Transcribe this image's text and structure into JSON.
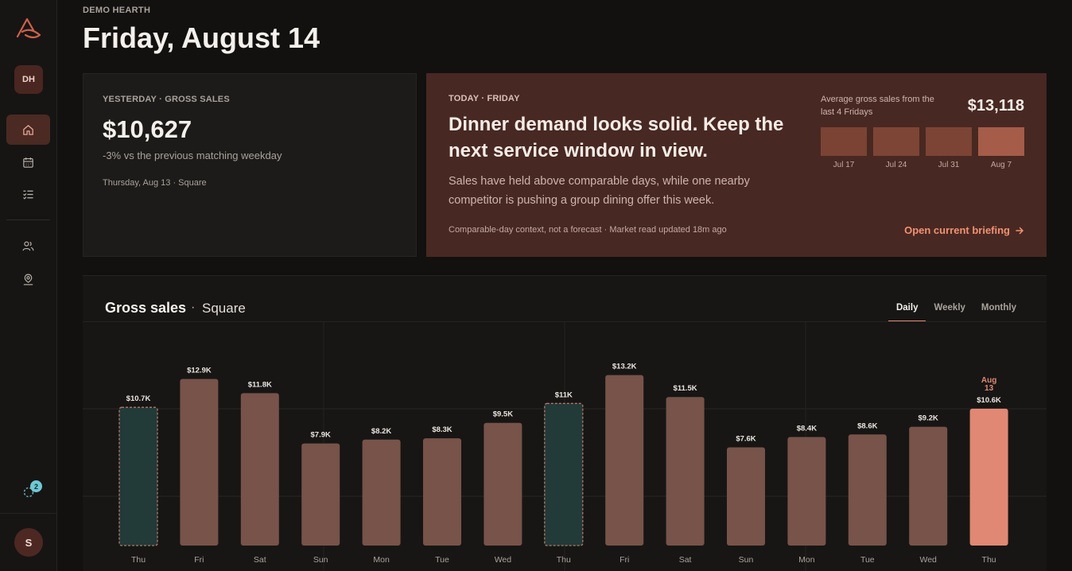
{
  "header": {
    "org_name": "DEMO HEARTH",
    "title": "Friday, August 14"
  },
  "sidebar": {
    "workspace_initials": "DH",
    "user_initials": "S",
    "notification_count": "2",
    "nav_icons": [
      "home-icon",
      "calendar-icon",
      "checklist-icon",
      "users-icon",
      "location-user-icon"
    ]
  },
  "yesterday": {
    "eyebrow": "YESTERDAY · GROSS SALES",
    "value": "$10,627",
    "delta": "-3% vs the previous matching weekday",
    "source": "Thursday, Aug 13 · Square"
  },
  "today": {
    "eyebrow": "TODAY · FRIDAY",
    "headline": "Dinner demand looks solid. Keep the next service window in view.",
    "body": "Sales have held above comparable days, while one nearby competitor is pushing a group dining offer this week.",
    "footnote": "Comparable-day context, not a forecast · Market read updated 18m ago",
    "avg_label": "Average gross sales from the last 4 Fridays",
    "avg_value": "$13,118",
    "mini_bars": [
      {
        "label": "Jul 17",
        "color": "#7a4334"
      },
      {
        "label": "Jul 24",
        "color": "#7d4535"
      },
      {
        "label": "Jul 31",
        "color": "#7b4435"
      },
      {
        "label": "Aug 7",
        "color": "#a55c49"
      }
    ],
    "link_label": "Open current briefing"
  },
  "chart": {
    "title": "Gross sales",
    "separator": "·",
    "source": "Square",
    "tabs": [
      "Daily",
      "Weekly",
      "Monthly"
    ],
    "active_tab": "Daily"
  },
  "chart_data": {
    "type": "bar",
    "categories": [
      "Thu",
      "Fri",
      "Sat",
      "Sun",
      "Mon",
      "Tue",
      "Wed",
      "Thu",
      "Fri",
      "Sat",
      "Sun",
      "Mon",
      "Tue",
      "Wed",
      "Thu"
    ],
    "values": [
      10.7,
      12.9,
      11.8,
      7.9,
      8.2,
      8.3,
      9.5,
      11.0,
      13.2,
      11.5,
      7.6,
      8.4,
      8.6,
      9.2,
      10.6
    ],
    "data_labels": [
      "$10.7K",
      "$12.9K",
      "$11.8K",
      "$7.9K",
      "$8.2K",
      "$8.3K",
      "$9.5K",
      "$11K",
      "$13.2K",
      "$11.5K",
      "$7.6K",
      "$8.4K",
      "$8.6K",
      "$9.2K",
      "$10.6K"
    ],
    "highlight_comparable": [
      0,
      7
    ],
    "current_index": 14,
    "current_label": "Aug 13",
    "units": "thousand USD",
    "ylim": [
      0,
      17.3
    ],
    "grid": true,
    "colors": {
      "bar": "#77534a",
      "comparable": "#223a38",
      "comparable_border": "#b07a6a",
      "current": "#e08873"
    }
  }
}
